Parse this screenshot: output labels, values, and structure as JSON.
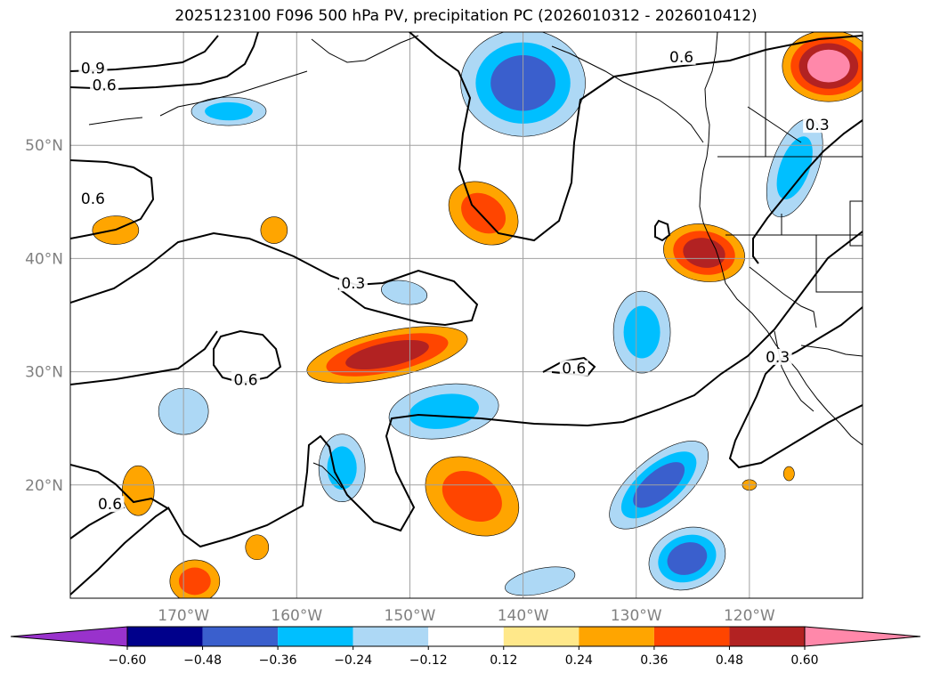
{
  "title": "2025123100 F096 500 hPa PV, precipitation PC (2026010312 - 2026010412)",
  "map": {
    "projection": "equirectangular",
    "lon_range": [
      -180,
      -110
    ],
    "lat_range": [
      10,
      60
    ],
    "gridlines": true,
    "coastlines": true,
    "borders": true
  },
  "axes": {
    "lat_ticks": [
      {
        "value": 20,
        "label": "20°N"
      },
      {
        "value": 30,
        "label": "30°N"
      },
      {
        "value": 40,
        "label": "40°N"
      },
      {
        "value": 50,
        "label": "50°N"
      }
    ],
    "lon_ticks": [
      {
        "value": -170,
        "label": "170°W"
      },
      {
        "value": -160,
        "label": "160°W"
      },
      {
        "value": -150,
        "label": "150°W"
      },
      {
        "value": -140,
        "label": "140°W"
      },
      {
        "value": -130,
        "label": "130°W"
      },
      {
        "value": -120,
        "label": "120°W"
      }
    ]
  },
  "colorbar": {
    "orientation": "horizontal",
    "extend": "both",
    "bins": [
      {
        "lo": null,
        "hi": -0.6,
        "color": "#9932cc"
      },
      {
        "lo": -0.6,
        "hi": -0.48,
        "color": "#00008b"
      },
      {
        "lo": -0.48,
        "hi": -0.36,
        "color": "#3a5fcd"
      },
      {
        "lo": -0.36,
        "hi": -0.24,
        "color": "#00bfff"
      },
      {
        "lo": -0.24,
        "hi": -0.12,
        "color": "#add8f5"
      },
      {
        "lo": -0.12,
        "hi": 0.12,
        "color": "#ffffff"
      },
      {
        "lo": 0.12,
        "hi": 0.24,
        "color": "#ffe88a"
      },
      {
        "lo": 0.24,
        "hi": 0.36,
        "color": "#ffa500"
      },
      {
        "lo": 0.36,
        "hi": 0.48,
        "color": "#ff4500"
      },
      {
        "lo": 0.48,
        "hi": 0.6,
        "color": "#b22222"
      },
      {
        "lo": 0.6,
        "hi": null,
        "color": "#ff88aa"
      }
    ],
    "tick_labels": [
      "−0.60",
      "−0.48",
      "−0.36",
      "−0.24",
      "−0.12",
      "0.12",
      "0.24",
      "0.36",
      "0.48",
      "0.60"
    ]
  },
  "precip_anomalies": [
    {
      "lon": -140,
      "lat": 55.5,
      "levels": [
        -0.24,
        -0.36,
        -0.48
      ]
    },
    {
      "lon": -116,
      "lat": 48,
      "levels": [
        -0.24,
        -0.36
      ]
    },
    {
      "lon": -166,
      "lat": 53,
      "levels": [
        -0.24,
        -0.36
      ]
    },
    {
      "lon": -113,
      "lat": 57,
      "levels": [
        0.24,
        0.36,
        0.48,
        0.6
      ]
    },
    {
      "lon": -143.5,
      "lat": 44,
      "levels": [
        0.24,
        0.36
      ]
    },
    {
      "lon": -124,
      "lat": 40.5,
      "levels": [
        0.24,
        0.36,
        0.48
      ]
    },
    {
      "lon": -152,
      "lat": 31.5,
      "levels": [
        0.24,
        0.36,
        0.48
      ]
    },
    {
      "lon": -129.5,
      "lat": 33.5,
      "levels": [
        -0.24,
        -0.36
      ]
    },
    {
      "lon": -147,
      "lat": 26.5,
      "levels": [
        -0.24,
        -0.36
      ]
    },
    {
      "lon": -156,
      "lat": 21.5,
      "levels": [
        -0.24,
        -0.36
      ]
    },
    {
      "lon": -144.5,
      "lat": 19,
      "levels": [
        0.24,
        0.36
      ]
    },
    {
      "lon": -128,
      "lat": 20,
      "levels": [
        -0.24,
        -0.36,
        -0.48
      ]
    },
    {
      "lon": -125.5,
      "lat": 13.5,
      "levels": [
        -0.24,
        -0.36,
        -0.48
      ]
    },
    {
      "lon": -170,
      "lat": 26.5,
      "levels": [
        -0.24
      ]
    },
    {
      "lon": -169,
      "lat": 11.5,
      "levels": [
        0.24,
        0.36
      ]
    },
    {
      "lon": -174,
      "lat": 19.5,
      "levels": [
        0.24
      ]
    },
    {
      "lon": -176,
      "lat": 42.5,
      "levels": [
        0.24
      ]
    },
    {
      "lon": -162,
      "lat": 42.5,
      "levels": [
        0.24
      ]
    },
    {
      "lon": -138.5,
      "lat": 11.5,
      "levels": [
        -0.24
      ]
    },
    {
      "lon": -150.5,
      "lat": 37,
      "levels": [
        -0.24
      ]
    },
    {
      "lon": -163.5,
      "lat": 14.5,
      "levels": [
        0.24
      ]
    },
    {
      "lon": -120,
      "lat": 20,
      "levels": [
        0.24
      ]
    },
    {
      "lon": -116.5,
      "lat": 21,
      "levels": [
        0.24
      ]
    }
  ],
  "pv_contour_labels": [
    {
      "text": "0.9",
      "lon": -178,
      "lat": 56.5
    },
    {
      "text": "0.6",
      "lon": -177,
      "lat": 55
    },
    {
      "text": "0.6",
      "lon": -126,
      "lat": 57.5
    },
    {
      "text": "0.3",
      "lon": -114,
      "lat": 51.5
    },
    {
      "text": "0.6",
      "lon": -178,
      "lat": 45
    },
    {
      "text": "0.3",
      "lon": -155,
      "lat": 37.5
    },
    {
      "text": "0.6",
      "lon": -164.5,
      "lat": 29
    },
    {
      "text": "0.6",
      "lon": -135.5,
      "lat": 30
    },
    {
      "text": "0.3",
      "lon": -117.5,
      "lat": 31
    },
    {
      "text": "0.6",
      "lon": -176.5,
      "lat": 18
    }
  ]
}
